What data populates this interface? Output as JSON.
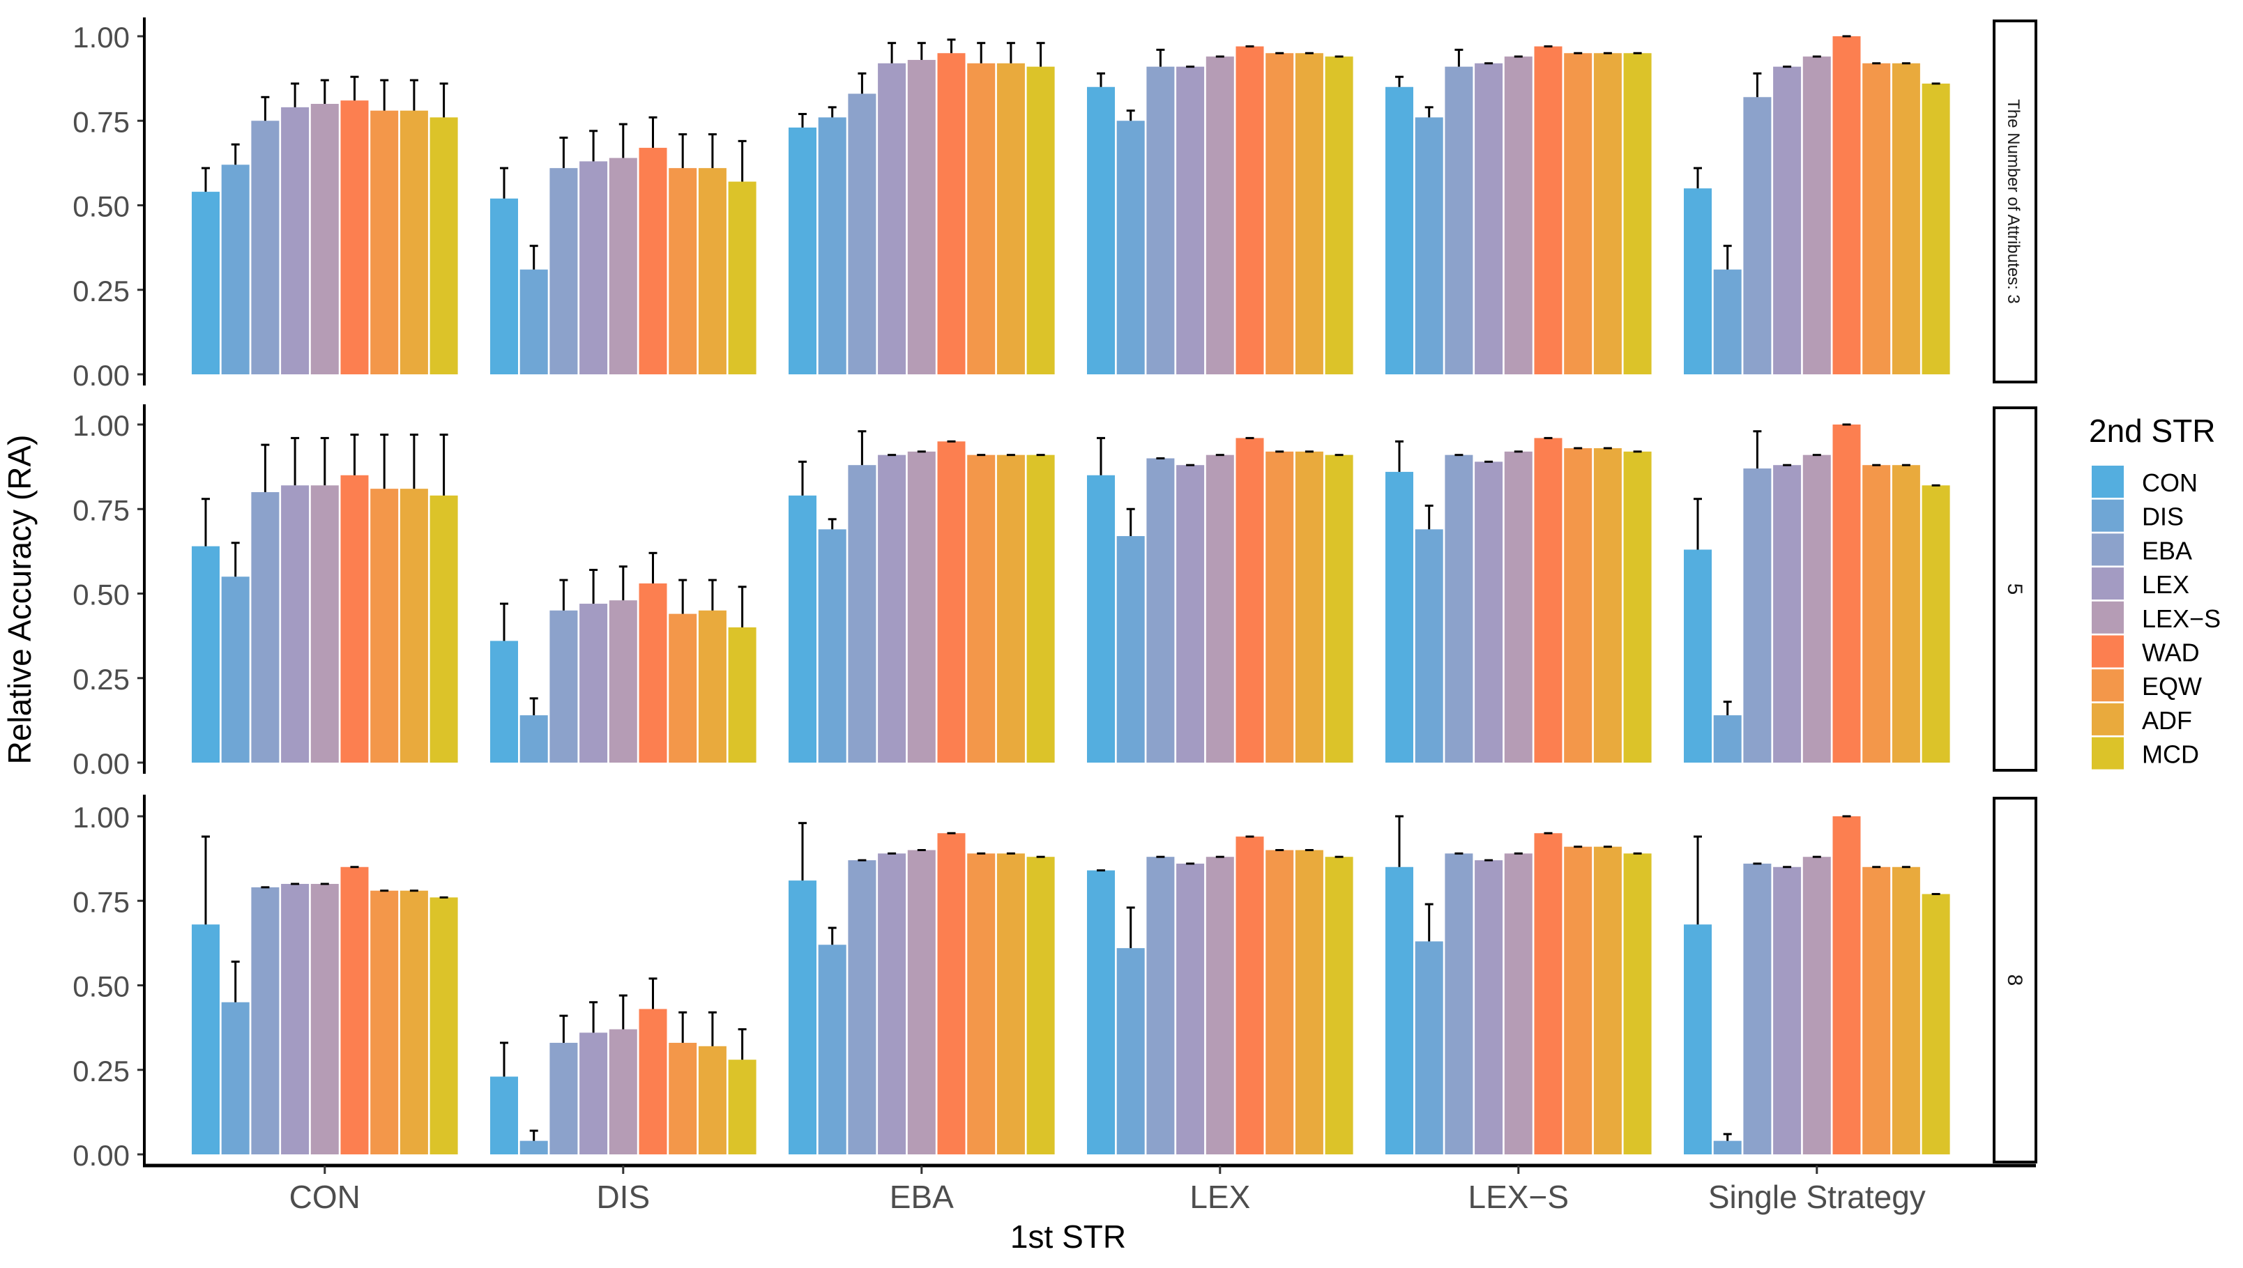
{
  "chart_data": {
    "type": "bar",
    "xlabel": "1st STR",
    "ylabel": "Relative Accuracy (RA)",
    "ylim": [
      0,
      1.0
    ],
    "yticks": [
      "0.00",
      "0.25",
      "0.50",
      "0.75",
      "1.00"
    ],
    "categories": [
      "CON",
      "DIS",
      "EBA",
      "LEX",
      "LEX−S",
      "Single Strategy"
    ],
    "legend": {
      "title": "2nd STR",
      "placement": "right",
      "entries": [
        "CON",
        "DIS",
        "EBA",
        "LEX",
        "LEX−S",
        "WAD",
        "EQW",
        "ADF",
        "MCD"
      ],
      "colors": [
        "#54AEDF",
        "#6FA6D5",
        "#8CA2CB",
        "#A39BC2",
        "#B59CB5",
        "#FC7F50",
        "#F3974A",
        "#E9AA3D",
        "#DCC329"
      ]
    },
    "facets": [
      {
        "label": "The Number of Attributes: 3",
        "values": [
          [
            0.54,
            0.62,
            0.75,
            0.79,
            0.8,
            0.81,
            0.78,
            0.78,
            0.76
          ],
          [
            0.52,
            0.31,
            0.61,
            0.63,
            0.64,
            0.67,
            0.61,
            0.61,
            0.57
          ],
          [
            0.73,
            0.76,
            0.83,
            0.92,
            0.93,
            0.95,
            0.92,
            0.92,
            0.91
          ],
          [
            0.85,
            0.75,
            0.91,
            0.91,
            0.94,
            0.97,
            0.95,
            0.95,
            0.94
          ],
          [
            0.85,
            0.76,
            0.91,
            0.92,
            0.94,
            0.97,
            0.95,
            0.95,
            0.95
          ],
          [
            0.55,
            0.31,
            0.82,
            0.91,
            0.94,
            1.0,
            0.92,
            0.92,
            0.86
          ]
        ],
        "error_upper": [
          [
            0.61,
            0.68,
            0.82,
            0.86,
            0.87,
            0.88,
            0.87,
            0.87,
            0.86
          ],
          [
            0.61,
            0.38,
            0.7,
            0.72,
            0.74,
            0.76,
            0.71,
            0.71,
            0.69
          ],
          [
            0.77,
            0.79,
            0.89,
            0.98,
            0.98,
            0.99,
            0.98,
            0.98,
            0.98
          ],
          [
            0.89,
            0.78,
            0.96,
            0.91,
            0.94,
            0.97,
            0.95,
            0.95,
            0.94
          ],
          [
            0.88,
            0.79,
            0.96,
            0.92,
            0.94,
            0.97,
            0.95,
            0.95,
            0.95
          ],
          [
            0.61,
            0.38,
            0.89,
            0.91,
            0.94,
            1.0,
            0.92,
            0.92,
            0.86
          ]
        ]
      },
      {
        "label": "5",
        "values": [
          [
            0.64,
            0.55,
            0.8,
            0.82,
            0.82,
            0.85,
            0.81,
            0.81,
            0.79
          ],
          [
            0.36,
            0.14,
            0.45,
            0.47,
            0.48,
            0.53,
            0.44,
            0.45,
            0.4
          ],
          [
            0.79,
            0.69,
            0.88,
            0.91,
            0.92,
            0.95,
            0.91,
            0.91,
            0.91
          ],
          [
            0.85,
            0.67,
            0.9,
            0.88,
            0.91,
            0.96,
            0.92,
            0.92,
            0.91
          ],
          [
            0.86,
            0.69,
            0.91,
            0.89,
            0.92,
            0.96,
            0.93,
            0.93,
            0.92
          ],
          [
            0.63,
            0.14,
            0.87,
            0.88,
            0.91,
            1.0,
            0.88,
            0.88,
            0.82
          ]
        ],
        "error_upper": [
          [
            0.78,
            0.65,
            0.94,
            0.96,
            0.96,
            0.97,
            0.97,
            0.97,
            0.97
          ],
          [
            0.47,
            0.19,
            0.54,
            0.57,
            0.58,
            0.62,
            0.54,
            0.54,
            0.52
          ],
          [
            0.89,
            0.72,
            0.98,
            0.91,
            0.92,
            0.95,
            0.91,
            0.91,
            0.91
          ],
          [
            0.96,
            0.75,
            0.9,
            0.88,
            0.91,
            0.96,
            0.92,
            0.92,
            0.91
          ],
          [
            0.95,
            0.76,
            0.91,
            0.89,
            0.92,
            0.96,
            0.93,
            0.93,
            0.92
          ],
          [
            0.78,
            0.18,
            0.98,
            0.88,
            0.91,
            1.0,
            0.88,
            0.88,
            0.82
          ]
        ]
      },
      {
        "label": "8",
        "values": [
          [
            0.68,
            0.45,
            0.79,
            0.8,
            0.8,
            0.85,
            0.78,
            0.78,
            0.76
          ],
          [
            0.23,
            0.04,
            0.33,
            0.36,
            0.37,
            0.43,
            0.33,
            0.32,
            0.28
          ],
          [
            0.81,
            0.62,
            0.87,
            0.89,
            0.9,
            0.95,
            0.89,
            0.89,
            0.88
          ],
          [
            0.84,
            0.61,
            0.88,
            0.86,
            0.88,
            0.94,
            0.9,
            0.9,
            0.88
          ],
          [
            0.85,
            0.63,
            0.89,
            0.87,
            0.89,
            0.95,
            0.91,
            0.91,
            0.89
          ],
          [
            0.68,
            0.04,
            0.86,
            0.85,
            0.88,
            1.0,
            0.85,
            0.85,
            0.77
          ]
        ],
        "error_upper": [
          [
            0.94,
            0.57,
            0.79,
            0.8,
            0.8,
            0.85,
            0.78,
            0.78,
            0.76
          ],
          [
            0.33,
            0.07,
            0.41,
            0.45,
            0.47,
            0.52,
            0.42,
            0.42,
            0.37
          ],
          [
            0.98,
            0.67,
            0.87,
            0.89,
            0.9,
            0.95,
            0.89,
            0.89,
            0.88
          ],
          [
            0.84,
            0.73,
            0.88,
            0.86,
            0.88,
            0.94,
            0.9,
            0.9,
            0.88
          ],
          [
            1.0,
            0.74,
            0.89,
            0.87,
            0.89,
            0.95,
            0.91,
            0.91,
            0.89
          ],
          [
            0.94,
            0.06,
            0.86,
            0.85,
            0.88,
            1.0,
            0.85,
            0.85,
            0.77
          ]
        ]
      }
    ]
  }
}
